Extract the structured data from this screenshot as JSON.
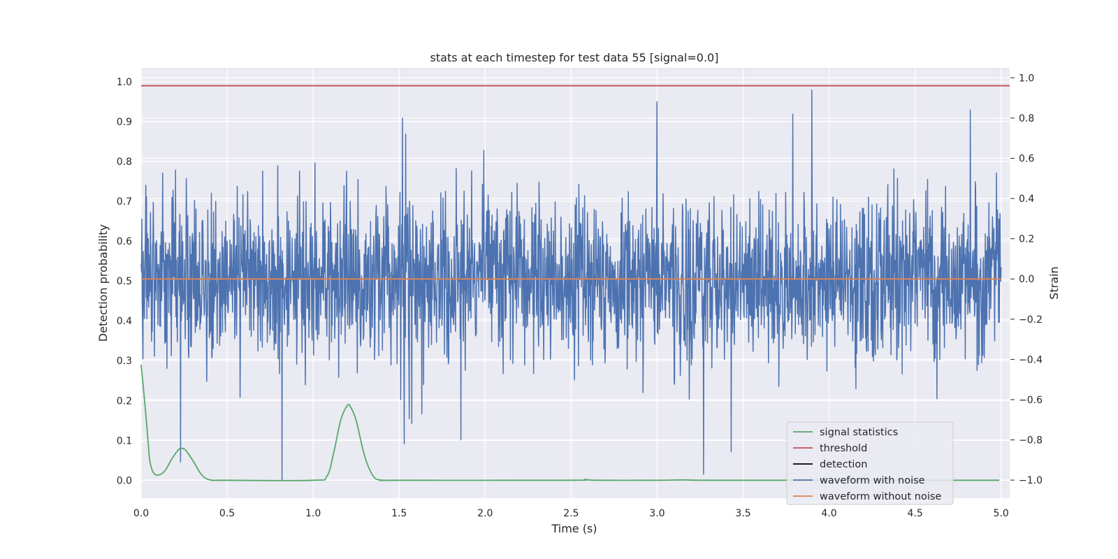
{
  "chart_data": {
    "type": "line",
    "title": "stats at each timestep for test data 55 [signal=0.0]",
    "xlabel": "Time (s)",
    "ylabel": "Detection probability",
    "y2label": "Strain",
    "xlim": [
      0,
      5.05
    ],
    "ylim": [
      -0.045,
      1.035
    ],
    "y2lim": [
      -1.09,
      1.05
    ],
    "xticks": [
      "0.0",
      "0.5",
      "1.0",
      "1.5",
      "2.0",
      "2.5",
      "3.0",
      "3.5",
      "4.0",
      "4.5",
      "5.0"
    ],
    "yticks": [
      "0.0",
      "0.1",
      "0.2",
      "0.3",
      "0.4",
      "0.5",
      "0.6",
      "0.7",
      "0.8",
      "0.9",
      "1.0"
    ],
    "y2ticks": [
      "−1.0",
      "−0.8",
      "−0.6",
      "−0.4",
      "−0.2",
      "0.0",
      "0.2",
      "0.4",
      "0.6",
      "0.8",
      "1.0"
    ],
    "grid": true,
    "legend_position": "lower-right",
    "threshold": 0.99,
    "noise_amplitude_std": 0.2,
    "series": [
      {
        "name": "signal statistics",
        "axis": "left",
        "color": "#55a868",
        "x": [
          0.0,
          0.02,
          0.04,
          0.05,
          0.07,
          0.1,
          0.14,
          0.18,
          0.22,
          0.24,
          0.26,
          0.3,
          0.35,
          0.4,
          0.5,
          1.0,
          1.08,
          1.12,
          1.16,
          1.2,
          1.22,
          1.25,
          1.3,
          1.35,
          1.4,
          1.5,
          2.5,
          2.58,
          2.65,
          3.0,
          3.15,
          3.3,
          4.0,
          4.99
        ],
        "y": [
          0.29,
          0.2,
          0.1,
          0.05,
          0.02,
          0.013,
          0.025,
          0.055,
          0.078,
          0.08,
          0.075,
          0.05,
          0.015,
          0.001,
          0.0,
          0.0,
          0.01,
          0.07,
          0.15,
          0.188,
          0.182,
          0.15,
          0.06,
          0.01,
          0.0,
          0.0,
          0.0,
          0.002,
          0.0,
          0.0,
          0.001,
          0.0,
          0.0,
          0.0
        ]
      },
      {
        "name": "threshold",
        "axis": "left",
        "color": "#c44e52",
        "x": [
          0.0,
          5.05
        ],
        "y": [
          0.99,
          0.99
        ]
      },
      {
        "name": "detection",
        "axis": "left",
        "color": "#000000",
        "x": [],
        "y": []
      },
      {
        "name": "waveform with noise",
        "axis": "right",
        "color": "#4c72b0",
        "x_range": [
          0.0,
          5.0
        ],
        "y_range": [
          -1.0,
          0.94
        ],
        "spikes": [
          {
            "x": 0.82,
            "y": -1.0
          },
          {
            "x": 0.23,
            "y": -0.91
          },
          {
            "x": 3.27,
            "y": -0.97
          },
          {
            "x": 3.43,
            "y": -0.86
          },
          {
            "x": 1.86,
            "y": -0.8
          },
          {
            "x": 1.53,
            "y": -0.82
          },
          {
            "x": 3.9,
            "y": 0.94
          },
          {
            "x": 3.0,
            "y": 0.88
          },
          {
            "x": 1.52,
            "y": 0.8
          },
          {
            "x": 4.82,
            "y": 0.84
          },
          {
            "x": 3.79,
            "y": 0.82
          }
        ]
      },
      {
        "name": "waveform without noise",
        "axis": "right",
        "color": "#dd8452",
        "x": [
          0.0,
          5.0
        ],
        "y": [
          0.0,
          0.0
        ]
      }
    ]
  }
}
